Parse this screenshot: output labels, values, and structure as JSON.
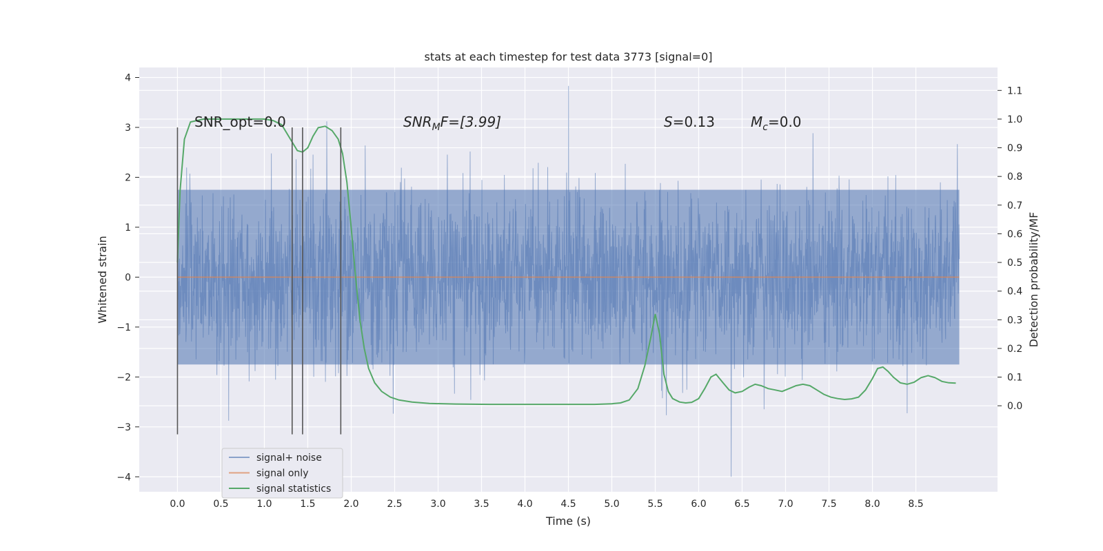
{
  "chart_data": {
    "type": "line",
    "title": "stats at each timestep for test data 3773 [signal=0]",
    "xlabel": "Time (s)",
    "ylabel": "Whitened strain",
    "ylabel_right": "Detection probability/MF",
    "xlim": [
      -0.44,
      9.44
    ],
    "ylim": [
      -4.3,
      4.2
    ],
    "ylim_right": [
      -0.3,
      1.18
    ],
    "x_ticks": [
      "0.0",
      "0.5",
      "1.0",
      "1.5",
      "2.0",
      "2.5",
      "3.0",
      "3.5",
      "4.0",
      "4.5",
      "5.0",
      "5.5",
      "6.0",
      "6.5",
      "7.0",
      "7.5",
      "8.0",
      "8.5"
    ],
    "y_ticks": [
      "4",
      "3",
      "2",
      "1",
      "0",
      "−1",
      "−2",
      "−3",
      "−4"
    ],
    "y_right_ticks": [
      "1.1",
      "1.0",
      "0.9",
      "0.8",
      "0.7",
      "0.6",
      "0.5",
      "0.4",
      "0.3",
      "0.2",
      "0.1",
      "0.0"
    ],
    "grid": true,
    "colors": {
      "background": "#eaeaf2",
      "grid": "#ffffff",
      "signal_noise": "#4c72b0",
      "signal_only": "#dd8452",
      "statistics": "#55a868",
      "marker_lines": "#555555"
    },
    "annotations": {
      "snr_opt": "SNR_opt=0.0",
      "snr_mf_main": "SNR",
      "snr_mf_sub": "M",
      "snr_mf_rest": "F=[3.99]",
      "s_main": "S",
      "s_rest": "=0.13",
      "mc_main": "M",
      "mc_sub": "c",
      "mc_rest": "=0.0"
    },
    "vertical_markers": [
      0.0,
      1.32,
      1.44,
      1.88
    ],
    "vertical_marker_range": [
      -3.15,
      3.0
    ],
    "series": [
      {
        "name": "signal+ noise",
        "kind": "noise",
        "x_range": [
          0.0,
          9.0
        ],
        "band": [
          -1.75,
          1.75
        ],
        "extremes": [
          3.83,
          -4.0
        ]
      },
      {
        "name": "signal only",
        "x": [
          0.0,
          9.0
        ],
        "values": [
          0.0,
          0.0
        ]
      },
      {
        "name": "signal statistics",
        "axis": "right",
        "x": [
          0.0,
          0.03,
          0.08,
          0.15,
          0.3,
          0.5,
          0.8,
          1.0,
          1.1,
          1.2,
          1.3,
          1.38,
          1.44,
          1.5,
          1.56,
          1.62,
          1.7,
          1.78,
          1.85,
          1.9,
          1.95,
          2.0,
          2.05,
          2.1,
          2.15,
          2.2,
          2.27,
          2.35,
          2.45,
          2.55,
          2.7,
          2.9,
          3.2,
          3.6,
          4.0,
          4.4,
          4.8,
          5.0,
          5.1,
          5.2,
          5.3,
          5.38,
          5.45,
          5.5,
          5.55,
          5.6,
          5.65,
          5.7,
          5.78,
          5.85,
          5.92,
          6.0,
          6.07,
          6.14,
          6.2,
          6.28,
          6.35,
          6.42,
          6.5,
          6.58,
          6.65,
          6.72,
          6.8,
          6.88,
          6.96,
          7.04,
          7.12,
          7.2,
          7.28,
          7.36,
          7.44,
          7.52,
          7.6,
          7.68,
          7.76,
          7.84,
          7.92,
          8.0,
          8.06,
          8.12,
          8.18,
          8.24,
          8.32,
          8.4,
          8.48,
          8.56,
          8.64,
          8.72,
          8.8,
          8.88,
          8.96
        ],
        "values": [
          0.5,
          0.75,
          0.93,
          0.99,
          1.0,
          1.0,
          1.0,
          1.0,
          0.995,
          0.98,
          0.93,
          0.89,
          0.885,
          0.9,
          0.94,
          0.97,
          0.975,
          0.96,
          0.93,
          0.88,
          0.78,
          0.62,
          0.45,
          0.3,
          0.2,
          0.13,
          0.08,
          0.05,
          0.03,
          0.02,
          0.013,
          0.008,
          0.006,
          0.005,
          0.005,
          0.005,
          0.005,
          0.007,
          0.01,
          0.02,
          0.06,
          0.14,
          0.24,
          0.32,
          0.25,
          0.11,
          0.05,
          0.025,
          0.013,
          0.01,
          0.012,
          0.025,
          0.06,
          0.1,
          0.11,
          0.08,
          0.055,
          0.045,
          0.05,
          0.065,
          0.075,
          0.07,
          0.06,
          0.055,
          0.05,
          0.06,
          0.07,
          0.075,
          0.07,
          0.055,
          0.04,
          0.03,
          0.025,
          0.022,
          0.024,
          0.03,
          0.055,
          0.095,
          0.13,
          0.135,
          0.12,
          0.1,
          0.08,
          0.075,
          0.082,
          0.098,
          0.105,
          0.098,
          0.085,
          0.08,
          0.079
        ]
      }
    ],
    "legend": {
      "position": "lower-left",
      "entries": [
        "signal+ noise",
        "signal only",
        "signal statistics"
      ]
    }
  }
}
